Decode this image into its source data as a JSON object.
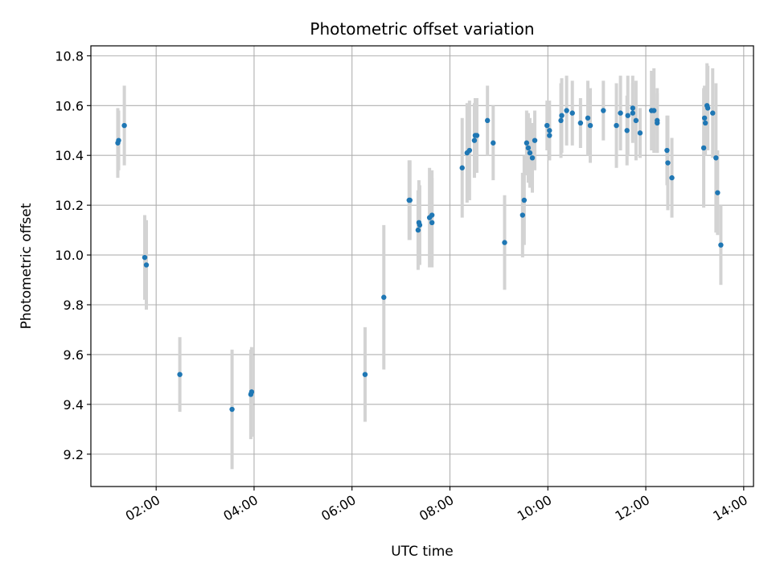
{
  "chart_data": {
    "type": "scatter",
    "title": "Photometric offset variation",
    "xlabel": "UTC time",
    "ylabel": "Photometric offset",
    "x_ticks": [
      "02:00",
      "04:00",
      "06:00",
      "08:00",
      "10:00",
      "12:00",
      "14:00"
    ],
    "y_ticks": [
      "9.2",
      "9.4",
      "9.6",
      "9.8",
      "10.0",
      "10.2",
      "10.4",
      "10.6",
      "10.8"
    ],
    "xlim": [
      "00:40",
      "14:12"
    ],
    "ylim": [
      9.07,
      10.84
    ],
    "grid": true,
    "colors": {
      "points": "#1f77b4",
      "errorbars": "#d3d3d3",
      "grid": "#b0b0b0"
    },
    "series": [
      {
        "x": [
          "01:13",
          "01:14",
          "01:21",
          "01:46",
          "01:48",
          "02:29",
          "03:33",
          "03:56",
          "03:57",
          "06:16",
          "06:39",
          "07:10",
          "07:11",
          "07:21",
          "07:22",
          "07:23",
          "07:35",
          "07:38",
          "07:38",
          "08:15",
          "08:21",
          "08:24",
          "08:30",
          "08:31",
          "08:33",
          "08:46",
          "08:53",
          "09:07",
          "09:29",
          "09:31",
          "09:34",
          "09:36",
          "09:38",
          "09:41",
          "09:44",
          "09:59",
          "10:02",
          "10:02",
          "10:16",
          "10:17",
          "10:23",
          "10:30",
          "10:40",
          "10:49",
          "10:52",
          "11:08",
          "11:24",
          "11:29",
          "11:37",
          "11:38",
          "11:44",
          "11:44",
          "11:48",
          "11:53",
          "12:07",
          "12:10",
          "12:14",
          "12:14",
          "12:26",
          "12:27",
          "12:32",
          "13:11",
          "13:12",
          "13:13",
          "13:15",
          "13:16",
          "13:22",
          "13:26",
          "13:28",
          "13:32"
        ],
        "y": [
          10.45,
          10.46,
          10.52,
          9.99,
          9.96,
          9.52,
          9.38,
          9.44,
          9.45,
          9.52,
          9.83,
          10.22,
          10.22,
          10.1,
          10.13,
          10.12,
          10.15,
          10.16,
          10.13,
          10.35,
          10.41,
          10.42,
          10.46,
          10.48,
          10.48,
          10.54,
          10.45,
          10.05,
          10.16,
          10.22,
          10.45,
          10.43,
          10.41,
          10.39,
          10.46,
          10.52,
          10.48,
          10.5,
          10.54,
          10.56,
          10.58,
          10.57,
          10.53,
          10.55,
          10.52,
          10.58,
          10.52,
          10.57,
          10.5,
          10.56,
          10.59,
          10.57,
          10.54,
          10.49,
          10.58,
          10.58,
          10.53,
          10.54,
          10.42,
          10.37,
          10.31,
          10.43,
          10.55,
          10.53,
          10.6,
          10.59,
          10.57,
          10.39,
          10.25,
          10.04
        ],
        "yerr": [
          0.14,
          0.12,
          0.16,
          0.17,
          0.18,
          0.15,
          0.24,
          0.18,
          0.18,
          0.19,
          0.29,
          0.16,
          0.16,
          0.16,
          0.17,
          0.16,
          0.2,
          0.18,
          0.18,
          0.2,
          0.2,
          0.2,
          0.15,
          0.15,
          0.15,
          0.14,
          0.15,
          0.19,
          0.17,
          0.18,
          0.13,
          0.14,
          0.14,
          0.14,
          0.12,
          0.1,
          0.1,
          0.12,
          0.15,
          0.15,
          0.14,
          0.13,
          0.1,
          0.15,
          0.15,
          0.12,
          0.17,
          0.15,
          0.14,
          0.16,
          0.13,
          0.12,
          0.16,
          0.1,
          0.16,
          0.17,
          0.12,
          0.13,
          0.14,
          0.19,
          0.16,
          0.24,
          0.13,
          0.13,
          0.17,
          0.17,
          0.18,
          0.3,
          0.17,
          0.16
        ]
      }
    ]
  }
}
